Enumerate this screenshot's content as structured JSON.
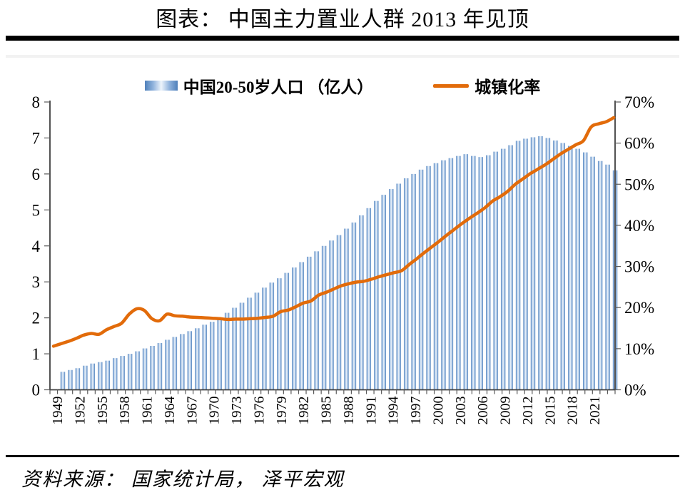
{
  "chart_data": {
    "type": "combo-bar-line",
    "title": "图表： 中国主力置业人群 2013 年见顶",
    "source": "资料来源： 国家统计局， 泽平宏观",
    "legend": [
      "中国20-50岁人口 （亿人）",
      "城镇化率"
    ],
    "x": [
      1949,
      1950,
      1951,
      1952,
      1953,
      1954,
      1955,
      1956,
      1957,
      1958,
      1959,
      1960,
      1961,
      1962,
      1963,
      1964,
      1965,
      1966,
      1967,
      1968,
      1969,
      1970,
      1971,
      1972,
      1973,
      1974,
      1975,
      1976,
      1977,
      1978,
      1979,
      1980,
      1981,
      1982,
      1983,
      1984,
      1985,
      1986,
      1987,
      1988,
      1989,
      1990,
      1991,
      1992,
      1993,
      1994,
      1995,
      1996,
      1997,
      1998,
      1999,
      2000,
      2001,
      2002,
      2003,
      2004,
      2005,
      2006,
      2007,
      2008,
      2009,
      2010,
      2011,
      2012,
      2013,
      2014,
      2015,
      2016,
      2017,
      2018,
      2019,
      2020,
      2021,
      2022,
      2023
    ],
    "x_tick_labels": [
      "1949",
      "1952",
      "1955",
      "1958",
      "1961",
      "1964",
      "1967",
      "1970",
      "1973",
      "1976",
      "1979",
      "1982",
      "1985",
      "1988",
      "1991",
      "1994",
      "1997",
      "2000",
      "2003",
      "2006",
      "2009",
      "2012",
      "2015",
      "2018",
      "2021"
    ],
    "series": [
      {
        "name": "中国20-50岁人口 （亿人）",
        "type": "bar",
        "axis": "left",
        "values": [
          0.5,
          0.55,
          0.6,
          0.67,
          0.73,
          0.77,
          0.81,
          0.88,
          0.94,
          1.0,
          1.07,
          1.15,
          1.22,
          1.3,
          1.39,
          1.47,
          1.55,
          1.63,
          1.71,
          1.81,
          1.89,
          2.0,
          2.14,
          2.28,
          2.42,
          2.56,
          2.7,
          2.84,
          2.98,
          3.1,
          3.25,
          3.4,
          3.55,
          3.7,
          3.85,
          4.0,
          4.15,
          4.3,
          4.48,
          4.65,
          4.85,
          5.05,
          5.25,
          5.42,
          5.58,
          5.73,
          5.88,
          6.0,
          6.12,
          6.22,
          6.3,
          6.38,
          6.44,
          6.5,
          6.55,
          6.5,
          6.47,
          6.52,
          6.62,
          6.7,
          6.8,
          6.92,
          6.98,
          7.02,
          7.05,
          7.0,
          6.93,
          6.86,
          6.78,
          6.7,
          6.6,
          6.48,
          6.36,
          6.26,
          6.1
        ]
      },
      {
        "name": "城镇化率",
        "type": "line",
        "axis": "right",
        "values": [
          10.6,
          11.2,
          11.8,
          12.5,
          13.3,
          13.7,
          13.5,
          14.6,
          15.4,
          16.2,
          18.4,
          19.7,
          19.3,
          17.3,
          16.8,
          18.4,
          18.0,
          17.9,
          17.7,
          17.6,
          17.5,
          17.4,
          17.3,
          17.1,
          17.2,
          17.2,
          17.3,
          17.4,
          17.6,
          17.9,
          19.0,
          19.4,
          20.2,
          21.1,
          21.6,
          23.0,
          23.7,
          24.5,
          25.3,
          25.8,
          26.2,
          26.4,
          26.9,
          27.5,
          28.0,
          28.5,
          29.0,
          30.5,
          31.9,
          33.4,
          34.8,
          36.2,
          37.7,
          39.1,
          40.5,
          41.8,
          43.0,
          44.3,
          45.9,
          47.0,
          48.3,
          50.0,
          51.3,
          52.6,
          53.7,
          54.8,
          56.1,
          57.4,
          58.5,
          59.6,
          60.6,
          63.9,
          64.7,
          65.2,
          66.2
        ]
      }
    ],
    "left_axis": {
      "min": 0,
      "max": 8,
      "tick_labels": [
        "0",
        "1",
        "2",
        "3",
        "4",
        "5",
        "6",
        "7",
        "8"
      ]
    },
    "right_axis": {
      "min": 0,
      "max": 70,
      "tick_labels": [
        "0%",
        "10%",
        "20%",
        "30%",
        "40%",
        "50%",
        "60%",
        "70%"
      ]
    },
    "grid": "off",
    "legend_position": "top-center",
    "colors": {
      "bar_dark": "#4f80ba",
      "bar_mid": "#8fb2dc",
      "bar_light": "#edf4fb",
      "line": "#e26b0a",
      "axis": "#3f3f3f",
      "tick": "#595959"
    }
  }
}
